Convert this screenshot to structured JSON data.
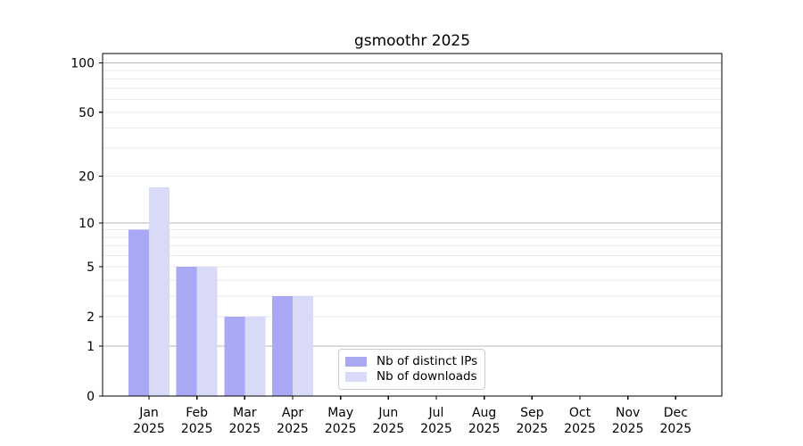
{
  "chart_data": {
    "type": "bar",
    "title": "gsmoothr 2025",
    "categories": [
      "Jan",
      "Feb",
      "Mar",
      "Apr",
      "May",
      "Jun",
      "Jul",
      "Aug",
      "Sep",
      "Oct",
      "Nov",
      "Dec"
    ],
    "category_year": "2025",
    "series": [
      {
        "name": "Nb of distinct IPs",
        "color": "#a8a8f4",
        "values": [
          9,
          5,
          2,
          3,
          0,
          0,
          0,
          0,
          0,
          0,
          0,
          0
        ]
      },
      {
        "name": "Nb of downloads",
        "color": "#d9d9f8",
        "values": [
          17,
          5,
          2,
          3,
          0,
          0,
          0,
          0,
          0,
          0,
          0,
          0
        ]
      }
    ],
    "xlabel": "",
    "ylabel": "",
    "yscale": "log1p",
    "ylim": [
      0,
      114
    ],
    "ytick_labels": [
      0,
      1,
      2,
      5,
      10,
      20,
      50,
      100
    ],
    "major_gridlines": [
      1,
      10,
      100
    ],
    "minor_gridlines": [
      2,
      3,
      4,
      5,
      6,
      7,
      8,
      9,
      20,
      30,
      40,
      50,
      60,
      70,
      80,
      90
    ],
    "grid": true,
    "legend_position": "lower center",
    "colors": {
      "major_grid": "#b4b4b4",
      "minor_grid": "#ebebeb",
      "axis": "#000000",
      "text": "#000000",
      "legend_border": "#cccccc",
      "background": "#ffffff"
    }
  }
}
